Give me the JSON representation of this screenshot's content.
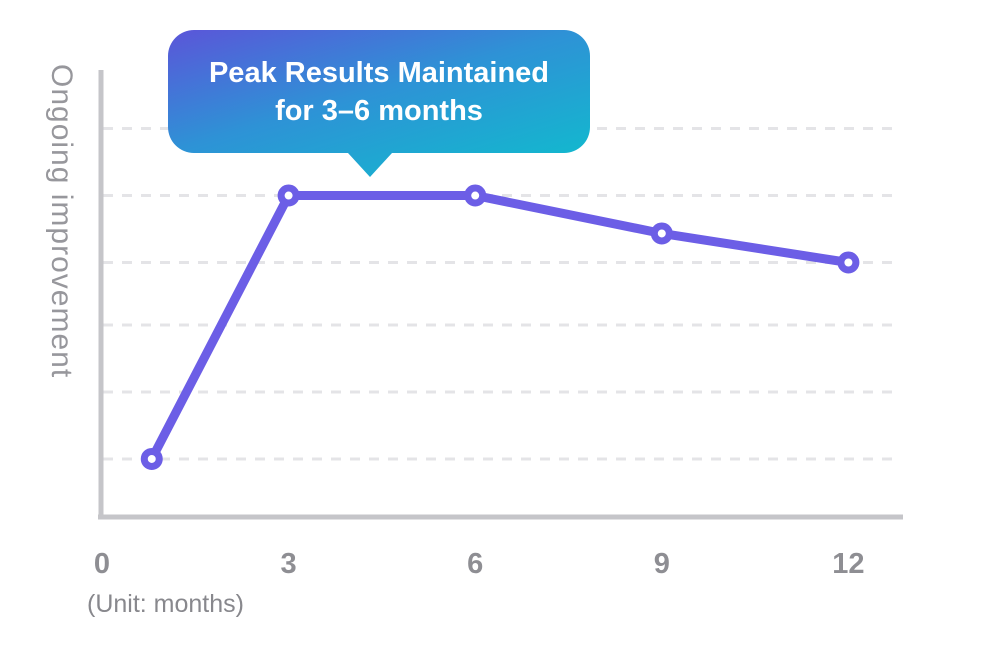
{
  "callout": {
    "line1": "Peak Results Maintained",
    "line2": "for 3–6 months"
  },
  "chart_data": {
    "type": "line",
    "title": "",
    "ylabel": "Ongoing improvement",
    "xlabel_note": "(Unit: months)",
    "x_ticks": [
      0,
      3,
      6,
      9,
      12
    ],
    "x_tick_labels": [
      "0",
      "3",
      "6",
      "9",
      "12"
    ],
    "x": [
      0.8,
      3,
      6,
      9,
      12
    ],
    "values": [
      13,
      72,
      72,
      63.5,
      57
    ],
    "series_name": "Ongoing improvement",
    "xlim": [
      0,
      12.9
    ],
    "ylim": [
      0,
      100
    ],
    "gridlines_y": [
      13,
      28,
      43,
      57,
      72,
      87
    ],
    "grid_style": "dashed-horizontal",
    "legend_position": "none",
    "annotation": {
      "text": "Peak Results Maintained for 3–6 months",
      "attached_x_range": [
        3,
        6
      ]
    },
    "colors": {
      "line": "#6c5ee6",
      "marker_fill": "#ffffff",
      "axis": "#c5c5c9",
      "grid": "#e4e4e7",
      "tick_text": "#8e8e93",
      "ylabel_text": "#97979c",
      "bubble_gradient_start": "#5b55d9",
      "bubble_gradient_mid": "#2e92d6",
      "bubble_gradient_end": "#12b9ce",
      "bubble_text": "#ffffff"
    }
  }
}
